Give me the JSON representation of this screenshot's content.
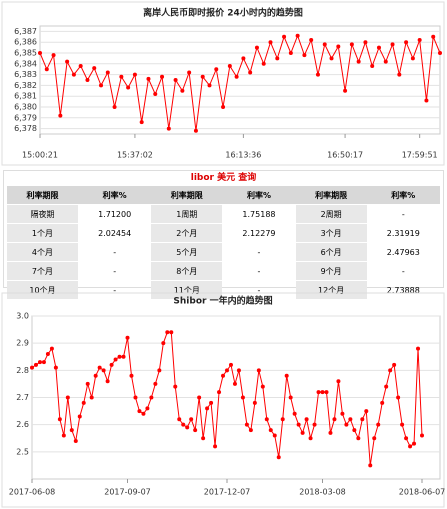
{
  "chart_data": [
    {
      "type": "line",
      "title": "离岸人民币即时报价 24小时内的趋势图",
      "color": "#ff0000",
      "grid": true,
      "ylim": [
        6.3775,
        6.3875
      ],
      "yticks": [
        {
          "value": 6.378,
          "label": "6,378"
        },
        {
          "value": 6.379,
          "label": "6,379"
        },
        {
          "value": 6.38,
          "label": "6,380"
        },
        {
          "value": 6.381,
          "label": "6,381"
        },
        {
          "value": 6.382,
          "label": "6,382"
        },
        {
          "value": 6.383,
          "label": "6,383"
        },
        {
          "value": 6.384,
          "label": "6,384"
        },
        {
          "value": 6.385,
          "label": "6,385"
        },
        {
          "value": 6.386,
          "label": "6,386"
        },
        {
          "value": 6.387,
          "label": "6,387"
        }
      ],
      "categories": [
        "15:00:21",
        null,
        null,
        null,
        null,
        null,
        null,
        null,
        null,
        null,
        null,
        null,
        null,
        null,
        "15:37:02",
        null,
        null,
        null,
        null,
        null,
        null,
        null,
        null,
        null,
        null,
        null,
        null,
        null,
        null,
        null,
        "16:13:36",
        null,
        null,
        null,
        null,
        null,
        null,
        null,
        null,
        null,
        null,
        null,
        null,
        null,
        null,
        "16:50:17",
        null,
        null,
        null,
        null,
        null,
        null,
        null,
        null,
        null,
        null,
        "17:59:51",
        null,
        null,
        null
      ],
      "values": [
        6.385,
        6.3835,
        6.3848,
        6.3792,
        6.3842,
        6.383,
        6.3838,
        6.3825,
        6.3836,
        6.382,
        6.3832,
        6.38,
        6.3828,
        6.3818,
        6.383,
        6.3786,
        6.3826,
        6.3812,
        6.3828,
        6.378,
        6.3825,
        6.3815,
        6.3832,
        6.3778,
        6.3828,
        6.382,
        6.3835,
        6.38,
        6.3838,
        6.3828,
        6.3845,
        6.3832,
        6.3855,
        6.384,
        6.386,
        6.3845,
        6.3865,
        6.385,
        6.3866,
        6.3848,
        6.3862,
        6.383,
        6.3858,
        6.3845,
        6.3856,
        6.3815,
        6.3858,
        6.3842,
        6.386,
        6.3838,
        6.3855,
        6.3842,
        6.3858,
        6.383,
        6.386,
        6.3845,
        6.3862,
        6.3806,
        6.3865,
        6.385
      ]
    },
    {
      "type": "line",
      "title": "Shibor 一年内的趋势图",
      "color": "#ff0000",
      "grid": true,
      "ylim": [
        2.4,
        3.0
      ],
      "yticks": [
        2.5,
        2.6,
        2.7,
        2.8,
        2.9,
        {
          "value": 3.0,
          "label": "3.0"
        }
      ],
      "categories": [
        "2017-06-08",
        null,
        null,
        null,
        null,
        null,
        null,
        null,
        null,
        null,
        null,
        null,
        null,
        null,
        null,
        null,
        null,
        null,
        null,
        null,
        null,
        null,
        null,
        null,
        "2017-09-07",
        null,
        null,
        null,
        null,
        null,
        null,
        null,
        null,
        null,
        null,
        null,
        null,
        null,
        null,
        null,
        null,
        null,
        null,
        null,
        null,
        null,
        null,
        null,
        null,
        "2017-12-07",
        null,
        null,
        null,
        null,
        null,
        null,
        null,
        null,
        null,
        null,
        null,
        null,
        null,
        null,
        null,
        null,
        null,
        null,
        null,
        null,
        null,
        null,
        null,
        "2018-03-08",
        null,
        null,
        null,
        null,
        null,
        null,
        null,
        null,
        null,
        null,
        null,
        null,
        null,
        null,
        null,
        null,
        null,
        null,
        null,
        null,
        null,
        null,
        null,
        null,
        "2018-06-07"
      ],
      "values": [
        2.81,
        2.82,
        2.83,
        2.83,
        2.86,
        2.88,
        2.81,
        2.62,
        2.56,
        2.7,
        2.58,
        2.54,
        2.63,
        2.68,
        2.75,
        2.7,
        2.78,
        2.81,
        2.8,
        2.76,
        2.82,
        2.84,
        2.85,
        2.85,
        2.92,
        2.78,
        2.7,
        2.65,
        2.64,
        2.66,
        2.7,
        2.75,
        2.8,
        2.9,
        2.94,
        2.94,
        2.74,
        2.62,
        2.6,
        2.59,
        2.62,
        2.58,
        2.7,
        2.55,
        2.66,
        2.68,
        2.52,
        2.72,
        2.78,
        2.8,
        2.82,
        2.75,
        2.8,
        2.7,
        2.6,
        2.58,
        2.68,
        2.8,
        2.74,
        2.62,
        2.58,
        2.56,
        2.48,
        2.62,
        2.78,
        2.7,
        2.64,
        2.6,
        2.57,
        2.62,
        2.55,
        2.6,
        2.72,
        2.72,
        2.72,
        2.57,
        2.62,
        2.76,
        2.64,
        2.6,
        2.62,
        2.58,
        2.55,
        2.62,
        2.65,
        2.45,
        2.55,
        2.6,
        2.68,
        2.74,
        2.8,
        2.82,
        2.7,
        2.6,
        2.55,
        2.52,
        2.53,
        2.88,
        2.56
      ]
    }
  ],
  "table": {
    "title": "libor 美元 查询",
    "header": [
      "利率期限",
      "利率%",
      "利率期限",
      "利率%",
      "利率期限",
      "利率%"
    ],
    "rows": [
      [
        "隔夜期",
        "1.71200",
        "1周期",
        "1.75188",
        "2周期",
        "-"
      ],
      [
        "1个月",
        "2.02454",
        "2个月",
        "2.12279",
        "3个月",
        "2.31919"
      ],
      [
        "4个月",
        "-",
        "5个月",
        "-",
        "6个月",
        "2.47963"
      ],
      [
        "7个月",
        "-",
        "8个月",
        "-",
        "9个月",
        "-"
      ],
      [
        "10个月",
        "-",
        "11个月",
        "-",
        "12个月",
        "2.73888"
      ]
    ]
  }
}
